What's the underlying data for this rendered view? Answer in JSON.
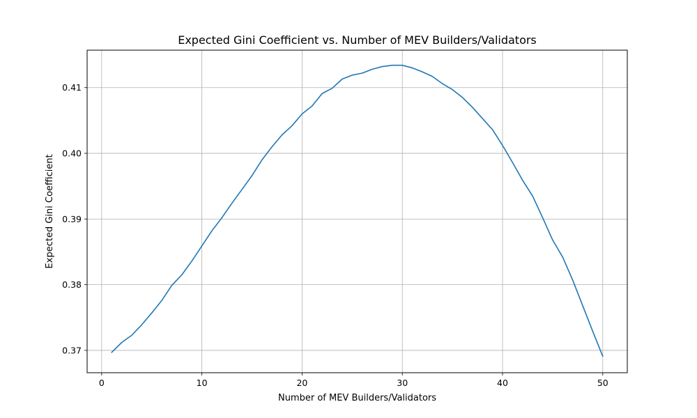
{
  "chart_data": {
    "type": "line",
    "title": "Expected Gini Coefficient vs. Number of MEV Builders/Validators",
    "xlabel": "Number of MEV Builders/Validators",
    "ylabel": "Expected Gini Coefficient",
    "xlim": [
      -1.45,
      52.45
    ],
    "ylim": [
      0.3666,
      0.4157
    ],
    "xticks": [
      0,
      10,
      20,
      30,
      40,
      50
    ],
    "yticks": [
      0.37,
      0.38,
      0.39,
      0.4,
      0.41
    ],
    "xtick_labels": [
      "0",
      "10",
      "20",
      "30",
      "40",
      "50"
    ],
    "ytick_labels": [
      "0.37",
      "0.38",
      "0.39",
      "0.40",
      "0.41"
    ],
    "grid": true,
    "line_color": "#1f77b4",
    "series": [
      {
        "x": [
          1,
          2,
          3,
          4,
          5,
          6,
          7,
          8,
          9,
          10,
          11,
          12,
          13,
          14,
          15,
          16,
          17,
          18,
          19,
          20,
          21,
          22,
          23,
          24,
          25,
          26,
          27,
          28,
          29,
          30,
          31,
          32,
          33,
          34,
          35,
          36,
          37,
          38,
          39,
          40,
          41,
          42,
          43,
          44,
          45,
          46,
          47,
          48,
          49,
          50
        ],
        "values": [
          0.3697,
          0.3712,
          0.3723,
          0.3739,
          0.3757,
          0.3776,
          0.3799,
          0.3815,
          0.3836,
          0.3859,
          0.3882,
          0.3902,
          0.3924,
          0.3945,
          0.3966,
          0.399,
          0.401,
          0.4028,
          0.4042,
          0.406,
          0.4072,
          0.4091,
          0.4099,
          0.4113,
          0.4119,
          0.4122,
          0.4128,
          0.4132,
          0.4134,
          0.4134,
          0.413,
          0.4124,
          0.4117,
          0.4106,
          0.4097,
          0.4085,
          0.407,
          0.4053,
          0.4036,
          0.4012,
          0.3986,
          0.3959,
          0.3935,
          0.3902,
          0.3868,
          0.3842,
          0.3807,
          0.3768,
          0.3729,
          0.3691
        ]
      }
    ]
  }
}
